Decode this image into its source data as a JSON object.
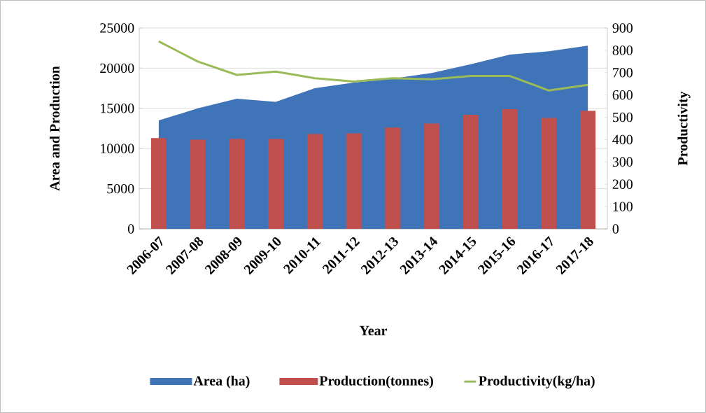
{
  "chart_data": {
    "type": "bar",
    "xlabel": "Year",
    "ylabel": "Area and Production",
    "y2label": "Productivity",
    "categories": [
      "2006-07",
      "2007-08",
      "2008-09",
      "2009-10",
      "2010-11",
      "2011-12",
      "2012-13",
      "2013-14",
      "2014-15",
      "2015-16",
      "2016-17",
      "2017-18"
    ],
    "series": [
      {
        "name": "Area (ha)",
        "type": "area",
        "color": "#3f74b8",
        "values": [
          13500,
          15000,
          16200,
          15800,
          17500,
          18200,
          18700,
          19400,
          20500,
          21700,
          22100,
          22800
        ]
      },
      {
        "name": "Production(tonnes)",
        "color": "#c0504d",
        "values": [
          11300,
          11100,
          11200,
          11200,
          11800,
          11900,
          12600,
          13100,
          14200,
          14900,
          13800,
          14700
        ]
      },
      {
        "name": "Productivity(kg/ha)",
        "type": "line",
        "axis": "y2",
        "color": "#9bbb59",
        "values": [
          840,
          750,
          690,
          705,
          675,
          660,
          675,
          670,
          685,
          685,
          620,
          645
        ]
      }
    ],
    "ylim": [
      0,
      25000
    ],
    "yticks": [
      0,
      5000,
      10000,
      15000,
      20000,
      25000
    ],
    "y2lim": [
      0,
      900
    ],
    "y2ticks": [
      0,
      100,
      200,
      300,
      400,
      500,
      600,
      700,
      800,
      900
    ],
    "grid": "y",
    "legend": "bottom",
    "marker": "none"
  }
}
